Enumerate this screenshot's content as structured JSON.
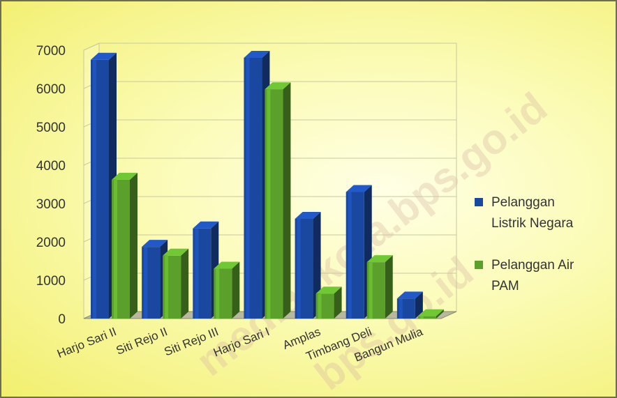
{
  "chart_data": {
    "type": "bar",
    "categories": [
      "Harjo Sari II",
      "Siti Rejo II",
      "Siti Rejo III",
      "Harjo Sari I",
      "Amplas",
      "Timbang Deli",
      "Bangun Mulia"
    ],
    "series": [
      {
        "name": "Pelanggan Listrik Negara",
        "color": "#1a48a0",
        "values": [
          6750,
          1870,
          2350,
          6800,
          2600,
          3300,
          520
        ]
      },
      {
        "name": "Pelanggan Air PAM",
        "color": "#5aa02a",
        "values": [
          3620,
          1640,
          1300,
          5980,
          650,
          1470,
          60
        ]
      }
    ],
    "ylim": [
      0,
      7000
    ],
    "yticks": [
      "0",
      "1000",
      "2000",
      "3000",
      "4000",
      "5000",
      "6000",
      "7000"
    ],
    "legend": {
      "position": "right",
      "entries": [
        [
          "Pelanggan",
          "Listrik Negara"
        ],
        [
          "Pelanggan Air",
          "PAM"
        ]
      ]
    },
    "grid": true,
    "title": "",
    "xlabel": "",
    "ylabel": "",
    "watermark": [
      "mediankota.bps.go.id",
      "bps.go.id"
    ]
  }
}
